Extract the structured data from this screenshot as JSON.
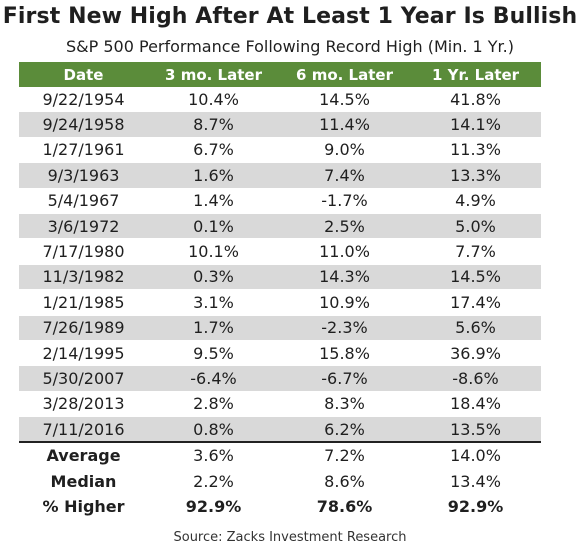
{
  "chart_data": {
    "type": "table",
    "title": "First New High After At Least 1 Year Is Bullish",
    "subtitle": "S&P 500 Performance Following Record High (Min. 1 Yr.)",
    "columns": [
      "Date",
      "3 mo. Later",
      "6 mo. Later",
      "1 Yr. Later"
    ],
    "rows": [
      [
        "9/22/1954",
        "10.4%",
        "14.5%",
        "41.8%"
      ],
      [
        "9/24/1958",
        "8.7%",
        "11.4%",
        "14.1%"
      ],
      [
        "1/27/1961",
        "6.7%",
        "9.0%",
        "11.3%"
      ],
      [
        "9/3/1963",
        "1.6%",
        "7.4%",
        "13.3%"
      ],
      [
        "5/4/1967",
        "1.4%",
        "-1.7%",
        "4.9%"
      ],
      [
        "3/6/1972",
        "0.1%",
        "2.5%",
        "5.0%"
      ],
      [
        "7/17/1980",
        "10.1%",
        "11.0%",
        "7.7%"
      ],
      [
        "11/3/1982",
        "0.3%",
        "14.3%",
        "14.5%"
      ],
      [
        "1/21/1985",
        "3.1%",
        "10.9%",
        "17.4%"
      ],
      [
        "7/26/1989",
        "1.7%",
        "-2.3%",
        "5.6%"
      ],
      [
        "2/14/1995",
        "9.5%",
        "15.8%",
        "36.9%"
      ],
      [
        "5/30/2007",
        "-6.4%",
        "-6.7%",
        "-8.6%"
      ],
      [
        "3/28/2013",
        "2.8%",
        "8.3%",
        "18.4%"
      ],
      [
        "7/11/2016",
        "0.8%",
        "6.2%",
        "13.5%"
      ]
    ],
    "summary": [
      [
        "Average",
        "3.6%",
        "7.2%",
        "14.0%"
      ],
      [
        "Median",
        "2.2%",
        "8.6%",
        "13.4%"
      ],
      [
        "% Higher",
        "92.9%",
        "78.6%",
        "92.9%"
      ]
    ],
    "source": "Source: Zacks Investment Research"
  },
  "colors": {
    "header_bg": "#5b8c3a",
    "stripe_bg": "#d9d9d9",
    "positive": "#1ea12b",
    "negative": "#e0151b"
  }
}
